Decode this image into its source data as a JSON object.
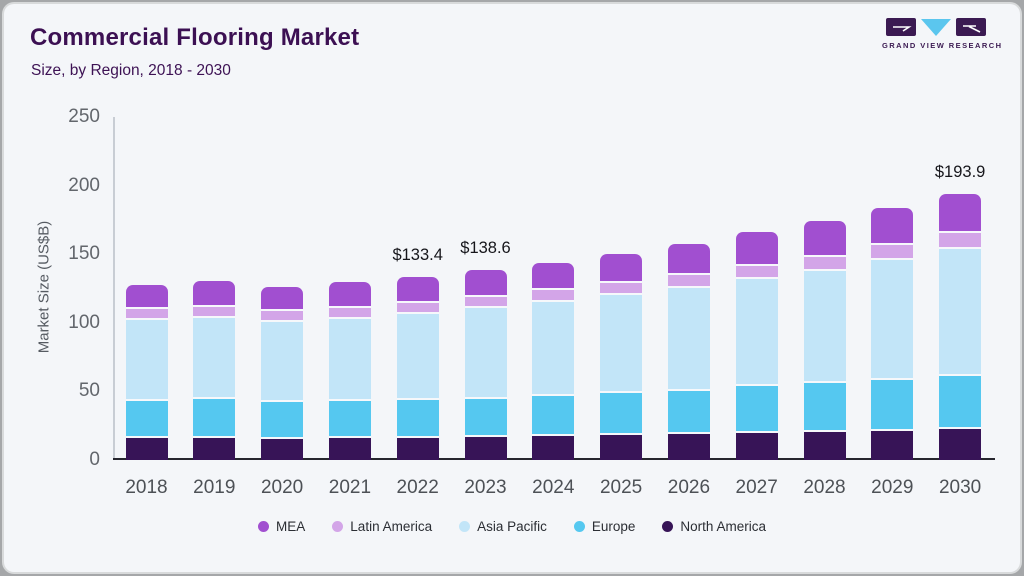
{
  "header": {
    "title": "Commercial Flooring Market",
    "subtitle": "Size, by Region, 2018 - 2030",
    "logo_text": "GRAND VIEW RESEARCH"
  },
  "chart_data": {
    "type": "bar",
    "stacked": true,
    "title": "Commercial Flooring Market",
    "subtitle": "Size, by Region, 2018 - 2030",
    "xlabel": "",
    "ylabel": "Market Size (US$B)",
    "ylim": [
      0,
      250
    ],
    "yticks": [
      0,
      50,
      100,
      150,
      200,
      250
    ],
    "grid": false,
    "legend_position": "bottom",
    "categories": [
      "2018",
      "2019",
      "2020",
      "2021",
      "2022",
      "2023",
      "2024",
      "2025",
      "2026",
      "2027",
      "2028",
      "2029",
      "2030"
    ],
    "series": [
      {
        "name": "North America",
        "color": "#371457",
        "values": [
          16.0,
          16.3,
          15.4,
          15.8,
          16.2,
          16.6,
          17.2,
          18.0,
          18.8,
          19.6,
          20.5,
          21.4,
          22.4
        ]
      },
      {
        "name": "Europe",
        "color": "#55c8f0",
        "values": [
          27.0,
          27.8,
          26.9,
          27.3,
          27.8,
          28.2,
          29.8,
          30.5,
          31.5,
          34.5,
          35.8,
          37.0,
          38.8
        ]
      },
      {
        "name": "Asia Pacific",
        "color": "#c2e5f8",
        "values": [
          58.9,
          59.4,
          58.4,
          59.8,
          62.4,
          65.9,
          68.3,
          71.8,
          75.3,
          77.9,
          81.5,
          87.7,
          92.9
        ]
      },
      {
        "name": "Latin America",
        "color": "#d3a5e8",
        "values": [
          8.0,
          8.3,
          7.6,
          7.8,
          8.0,
          8.3,
          8.6,
          8.9,
          9.3,
          9.7,
          10.1,
          10.6,
          11.1
        ]
      },
      {
        "name": "MEA",
        "color": "#a14fd0",
        "values": [
          17.7,
          18.7,
          17.8,
          18.8,
          19.0,
          19.6,
          20.0,
          20.9,
          22.4,
          24.6,
          26.5,
          26.7,
          28.7
        ]
      }
    ],
    "totals": [
      127.6,
      130.5,
      126.1,
      129.5,
      133.4,
      138.6,
      143.9,
      150.1,
      157.3,
      166.3,
      174.4,
      183.4,
      193.9
    ],
    "annotations": [
      {
        "category": "2022",
        "label": "$133.4"
      },
      {
        "category": "2023",
        "label": "$138.6"
      },
      {
        "category": "2030",
        "label": "$193.9"
      }
    ],
    "legend_order": [
      "MEA",
      "Latin America",
      "Asia Pacific",
      "Europe",
      "North America"
    ]
  }
}
